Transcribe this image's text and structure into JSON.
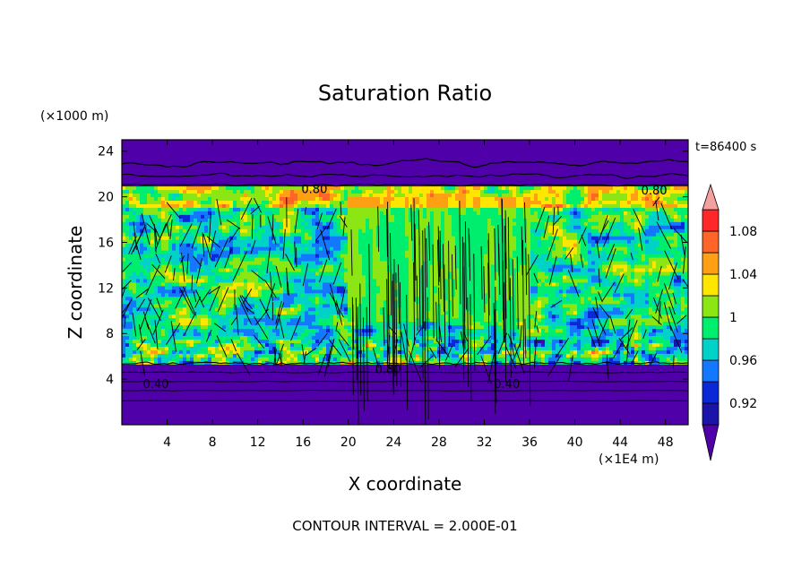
{
  "chart_data": {
    "type": "heatmap",
    "title": "Saturation Ratio",
    "xlabel": "X coordinate",
    "ylabel": "Z coordinate",
    "x_unit": "(×1E4 m)",
    "y_unit": "(×1000 m)",
    "time_label": "t=86400 s",
    "footer": "CONTOUR INTERVAL = 2.000E-01",
    "xlim": [
      0,
      50
    ],
    "ylim": [
      0,
      25
    ],
    "x_ticks": [
      "4",
      "8",
      "12",
      "16",
      "20",
      "24",
      "28",
      "32",
      "36",
      "40",
      "44",
      "48"
    ],
    "y_ticks": [
      "4",
      "8",
      "12",
      "16",
      "20",
      "24"
    ],
    "contour_labels": [
      "0.80",
      "0.80",
      "0.80",
      "0.40",
      "0.40"
    ],
    "colorbar": {
      "levels": [
        0.9,
        0.92,
        0.94,
        0.96,
        0.98,
        1.0,
        1.02,
        1.04,
        1.06,
        1.08,
        1.1
      ],
      "tick_labels": [
        "0.92",
        "0.96",
        "1",
        "1.04",
        "1.08"
      ],
      "colors": [
        "#5000a8",
        "#1a14a8",
        "#0a28d8",
        "#1478ff",
        "#00d2c8",
        "#00ee6e",
        "#8ce614",
        "#ffe600",
        "#ffa014",
        "#ff6428",
        "#ff2828",
        "#f4a0a0"
      ],
      "extend": "both"
    },
    "grid": false
  }
}
